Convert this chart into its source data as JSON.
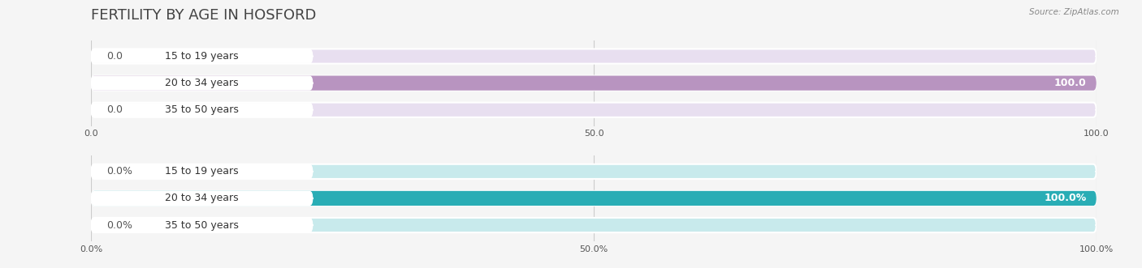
{
  "title": "FERTILITY BY AGE IN HOSFORD",
  "source": "Source: ZipAtlas.com",
  "chart1": {
    "categories": [
      "15 to 19 years",
      "20 to 34 years",
      "35 to 50 years"
    ],
    "values": [
      0.0,
      100.0,
      0.0
    ],
    "bar_color": "#b894c0",
    "bar_bg_color": "#e8dff0",
    "xticks": [
      0.0,
      50.0,
      100.0
    ],
    "xticklabels": [
      "0.0",
      "50.0",
      "100.0"
    ]
  },
  "chart2": {
    "categories": [
      "15 to 19 years",
      "20 to 34 years",
      "35 to 50 years"
    ],
    "values": [
      0.0,
      100.0,
      0.0
    ],
    "bar_color": "#29adb5",
    "bar_bg_color": "#c8eaec",
    "xticks": [
      0.0,
      50.0,
      100.0
    ],
    "xticklabels": [
      "0.0%",
      "50.0%",
      "100.0%"
    ]
  },
  "bg_color": "#f5f5f5",
  "label_color": "#333333",
  "value_color_inside": "#ffffff",
  "value_color_outside": "#555555",
  "title_fontsize": 13,
  "label_fontsize": 9,
  "value_fontsize": 9,
  "tick_fontsize": 8
}
